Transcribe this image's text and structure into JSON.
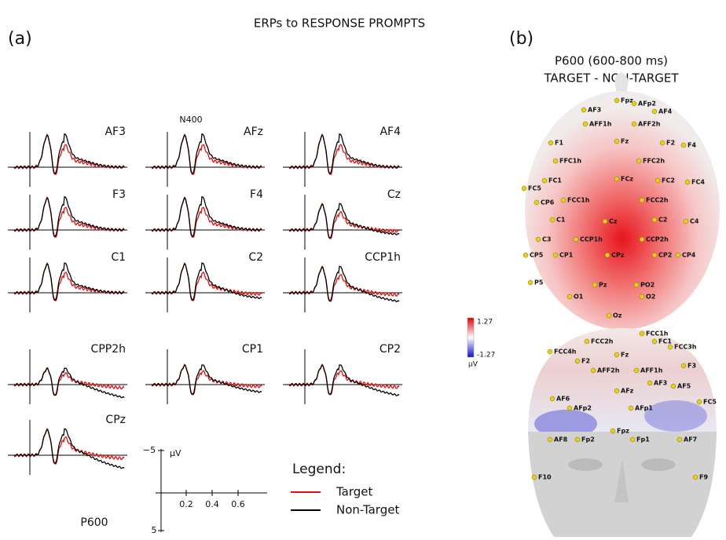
{
  "title": "ERPs to RESPONSE PROMPTS",
  "panel_a": {
    "label": "(a)",
    "plots": [
      "AF3",
      "AFz",
      "AF4",
      "F3",
      "F4",
      "Cz",
      "C1",
      "C2",
      "CCP1h",
      "CPP2h",
      "CP1",
      "CP2",
      "CPz"
    ],
    "annotations": {
      "n400": "N400",
      "p600": "P600"
    },
    "scale": {
      "top": "−5",
      "unit": "μV",
      "bottom": "5",
      "x_labels": [
        "0.2",
        "0.4",
        "0.6"
      ]
    },
    "legend": {
      "title": "Legend:",
      "items": [
        "Target",
        "Non-Target"
      ]
    }
  },
  "panel_b": {
    "label": "(b)",
    "title": "P600 (600-800 ms)",
    "subtitle": "TARGET - NON-TARGET",
    "colorbar": {
      "max": "1.27",
      "min": "-1.27",
      "unit": "μV"
    },
    "electrodes_top": [
      "Fpz",
      "AFp2",
      "AF4",
      "AF3",
      "AFF1h",
      "AFF2h",
      "F1",
      "Fz",
      "F2",
      "F4",
      "FFC1h",
      "FFC2h",
      "FC1",
      "FCz",
      "FC2",
      "FC4",
      "FCC1h",
      "FCC2h",
      "C1",
      "Cz",
      "C2",
      "C4",
      "CCP1h",
      "CCP2h",
      "CP1",
      "CPz",
      "CP2",
      "CP4",
      "CP6",
      "C3",
      "FC5",
      "CP5",
      "P5",
      "Pz",
      "O1",
      "Oz",
      "O2",
      "PO2"
    ],
    "electrodes_bottom": [
      "FCC2h",
      "FCC1h",
      "FC1",
      "FCC3h",
      "FCC4h",
      "F2",
      "AFF2h",
      "Fz",
      "AFF1h",
      "F3",
      "AFz",
      "AFp2",
      "AFp1",
      "AF3",
      "AF5",
      "AF6",
      "Fpz",
      "Fp2",
      "Fp1",
      "AF8",
      "AF7",
      "F10",
      "F9",
      "FC5"
    ]
  }
}
